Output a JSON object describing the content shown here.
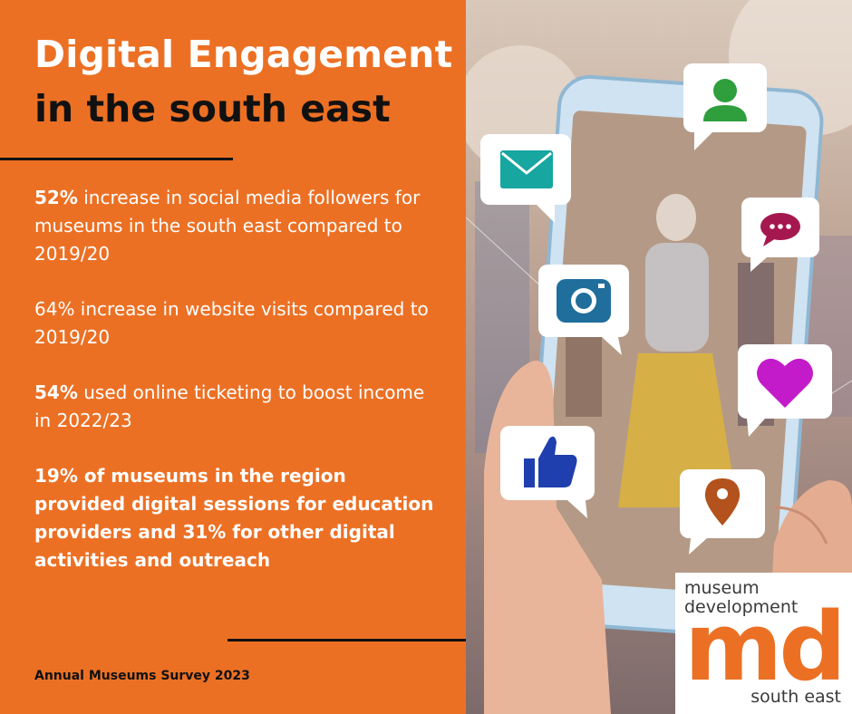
{
  "title": {
    "line1": "Digital Engagement",
    "line2": "in the south east"
  },
  "stats": [
    {
      "highlight": "52%",
      "text": " increase in social media followers for museums in the south east compared to 2019/20"
    },
    {
      "highlight": "",
      "text": "64% increase in website visits compared to 2019/20"
    },
    {
      "highlight": "54%",
      "text": " used online ticketing to boost income in 2022/23"
    },
    {
      "highlight": "",
      "text": "19% of museums in the region provided digital sessions for education providers and 31% for other digital activities and outreach"
    }
  ],
  "source": "Annual Museums Survey 2023",
  "logo": {
    "line1": "museum",
    "line2": "development",
    "mark": "md",
    "line3": "south east"
  },
  "icons": [
    "envelope-icon",
    "user-icon",
    "chat-dots-icon",
    "camera-icon",
    "heart-icon",
    "thumbs-up-icon",
    "map-pin-icon"
  ],
  "colors": {
    "accent": "#ec7024",
    "dark": "#111111",
    "envelope": "#17a6a0",
    "user": "#2f9e3c",
    "chat": "#a5174f",
    "camera": "#1f6e9c",
    "heart": "#c31bc9",
    "thumb": "#1f3fae",
    "pin": "#b3521c"
  }
}
